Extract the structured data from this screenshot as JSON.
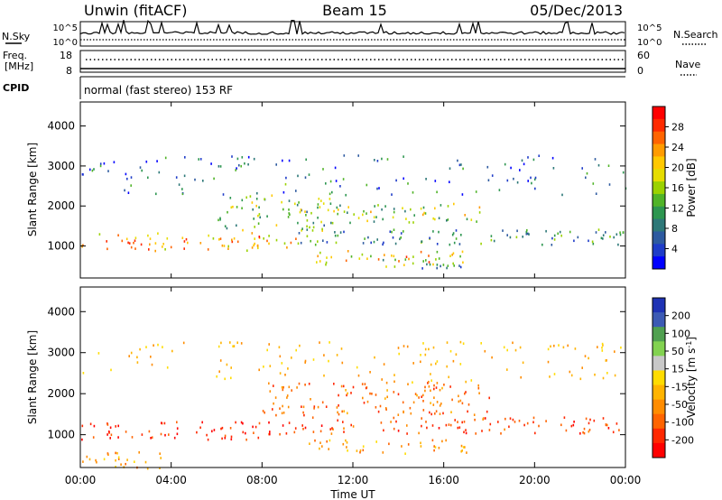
{
  "header": {
    "station": "Unwin (fitACF)",
    "beam": "Beam 15",
    "date": "05/Dec/2013"
  },
  "panels": {
    "nsky_label": "N.Sky",
    "nsky_ticks": [
      "10^5",
      "10^0"
    ],
    "nsearch_label": "N.Search",
    "nsearch_ticks": [
      "10^5",
      "10^0"
    ],
    "freq_label_1": "Freq.",
    "freq_label_2": "[MHz]",
    "freq_ticks": [
      "18",
      "8"
    ],
    "nave_label": "Nave",
    "nave_ticks": [
      "60",
      "0"
    ],
    "cpid_label": "CPID",
    "cpid_text": "normal (fast stereo) 153 RF"
  },
  "colorbars": {
    "power": {
      "label": "Power [dB]",
      "ticks": [
        "28",
        "24",
        "20",
        "16",
        "12",
        "8",
        "4"
      ],
      "colors": [
        "#ff0000",
        "#ff2a00",
        "#ff6400",
        "#ff9b00",
        "#ffc800",
        "#e6dc00",
        "#9bd200",
        "#50b428",
        "#2d9650",
        "#2d7878",
        "#2d5aa0",
        "#1e3cc8",
        "#0000ff"
      ]
    },
    "velocity": {
      "label_main": "Velocity [m s",
      "label_sup": "-1",
      "label_end": "]",
      "ticks": [
        "200",
        "100",
        "50",
        "15",
        "-15",
        "-50",
        "-100",
        "-200"
      ],
      "colors": [
        "#1e32b4",
        "#3c5ab4",
        "#50a050",
        "#82d250",
        "#c8c8c8",
        "#ffdc00",
        "#ffb400",
        "#ff8c00",
        "#ff6400",
        "#ff2800",
        "#ff0000"
      ]
    }
  },
  "x_axis": {
    "label": "Time UT",
    "ticks": [
      "00:00",
      "04:00",
      "08:00",
      "12:00",
      "16:00",
      "20:00",
      "00:00"
    ]
  },
  "chart_data": [
    {
      "type": "heatmap",
      "title": "",
      "xlabel": "Time UT",
      "ylabel": "Slant Range [km]",
      "xlim": [
        0,
        24
      ],
      "ylim": [
        200,
        4600
      ],
      "y_ticks": [
        1000,
        2000,
        3000,
        4000
      ],
      "colorbar_label": "Power [dB]",
      "colorbar_ticks": [
        28,
        24,
        20,
        16,
        12,
        8,
        4
      ],
      "bands": [
        {
          "x": [
            0,
            9.5
          ],
          "y": [
            900,
            1350
          ],
          "value": 22
        },
        {
          "x": [
            9.5,
            24
          ],
          "y": [
            1050,
            1450
          ],
          "value": 10
        },
        {
          "x": [
            6,
            11
          ],
          "y": [
            1400,
            2300
          ],
          "value": 14
        },
        {
          "x": [
            11,
            18
          ],
          "y": [
            1600,
            2100
          ],
          "value": 16
        },
        {
          "x": [
            10,
            17
          ],
          "y": [
            550,
            900
          ],
          "value": 20
        },
        {
          "x": [
            13,
            17
          ],
          "y": [
            400,
            700
          ],
          "value": 12
        },
        {
          "x": [
            0,
            24
          ],
          "y": [
            2300,
            3300
          ],
          "value": 8
        }
      ]
    },
    {
      "type": "heatmap",
      "title": "",
      "xlabel": "Time UT",
      "ylabel": "Slant Range [km]",
      "xlim": [
        0,
        24
      ],
      "ylim": [
        200,
        4600
      ],
      "y_ticks": [
        1000,
        2000,
        3000,
        4000
      ],
      "colorbar_label": "Velocity [m s-1]",
      "colorbar_ticks": [
        200,
        100,
        50,
        15,
        -15,
        -50,
        -100,
        -200
      ],
      "bands": [
        {
          "x": [
            0,
            9.5
          ],
          "y": [
            900,
            1350
          ],
          "value": -180
        },
        {
          "x": [
            9.5,
            24
          ],
          "y": [
            1050,
            1450
          ],
          "value": -150
        },
        {
          "x": [
            8,
            18
          ],
          "y": [
            1500,
            2300
          ],
          "value": -120
        },
        {
          "x": [
            10,
            17
          ],
          "y": [
            550,
            900
          ],
          "value": -70
        },
        {
          "x": [
            0,
            24
          ],
          "y": [
            2300,
            3300
          ],
          "value": -40
        },
        {
          "x": [
            0,
            4
          ],
          "y": [
            200,
            600
          ],
          "value": -60
        }
      ]
    }
  ]
}
